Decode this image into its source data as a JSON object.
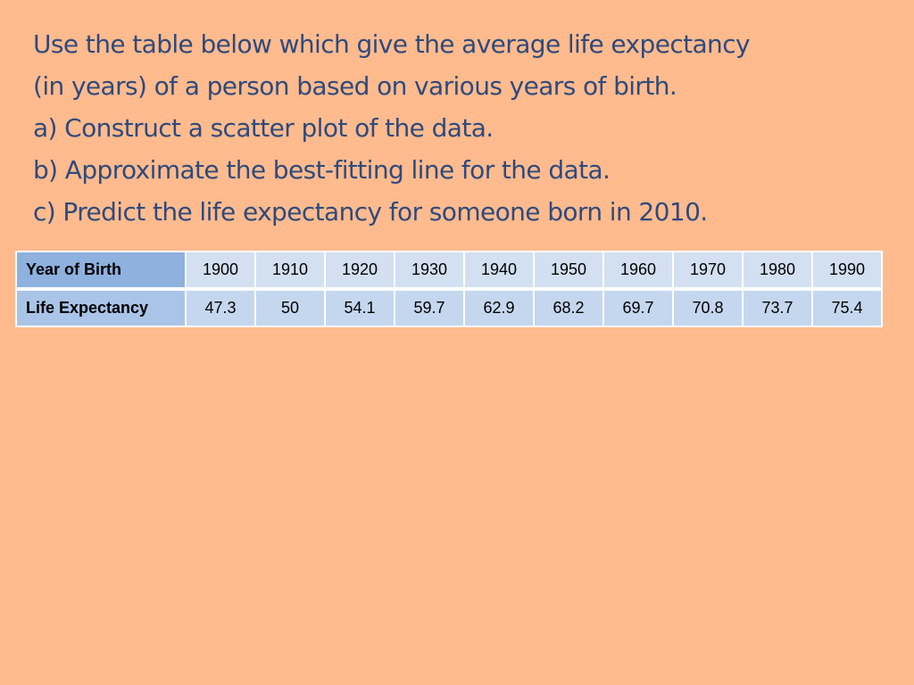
{
  "slide": {
    "lines": [
      "Use the table below which give the average life expectancy",
      "(in years) of a person based on various years of birth.",
      "a) Construct a scatter plot of the data.",
      "b) Approximate the best-fitting line for the data.",
      "c) Predict the life expectancy for someone born in 2010."
    ]
  },
  "table": {
    "row_headers": [
      "Year of Birth",
      "Life Expectancy"
    ],
    "years": [
      "1900",
      "1910",
      "1920",
      "1930",
      "1940",
      "1950",
      "1960",
      "1970",
      "1980",
      "1990"
    ],
    "life_expectancy": [
      "47.3",
      "50",
      "54.1",
      "59.7",
      "62.9",
      "68.2",
      "69.7",
      "70.8",
      "73.7",
      "75.4"
    ]
  },
  "colors": {
    "background": "#FFBB8E",
    "text": "#2F4A7C",
    "header_cell": "#8EB1DE",
    "value_cell": "#D3E0F1"
  }
}
